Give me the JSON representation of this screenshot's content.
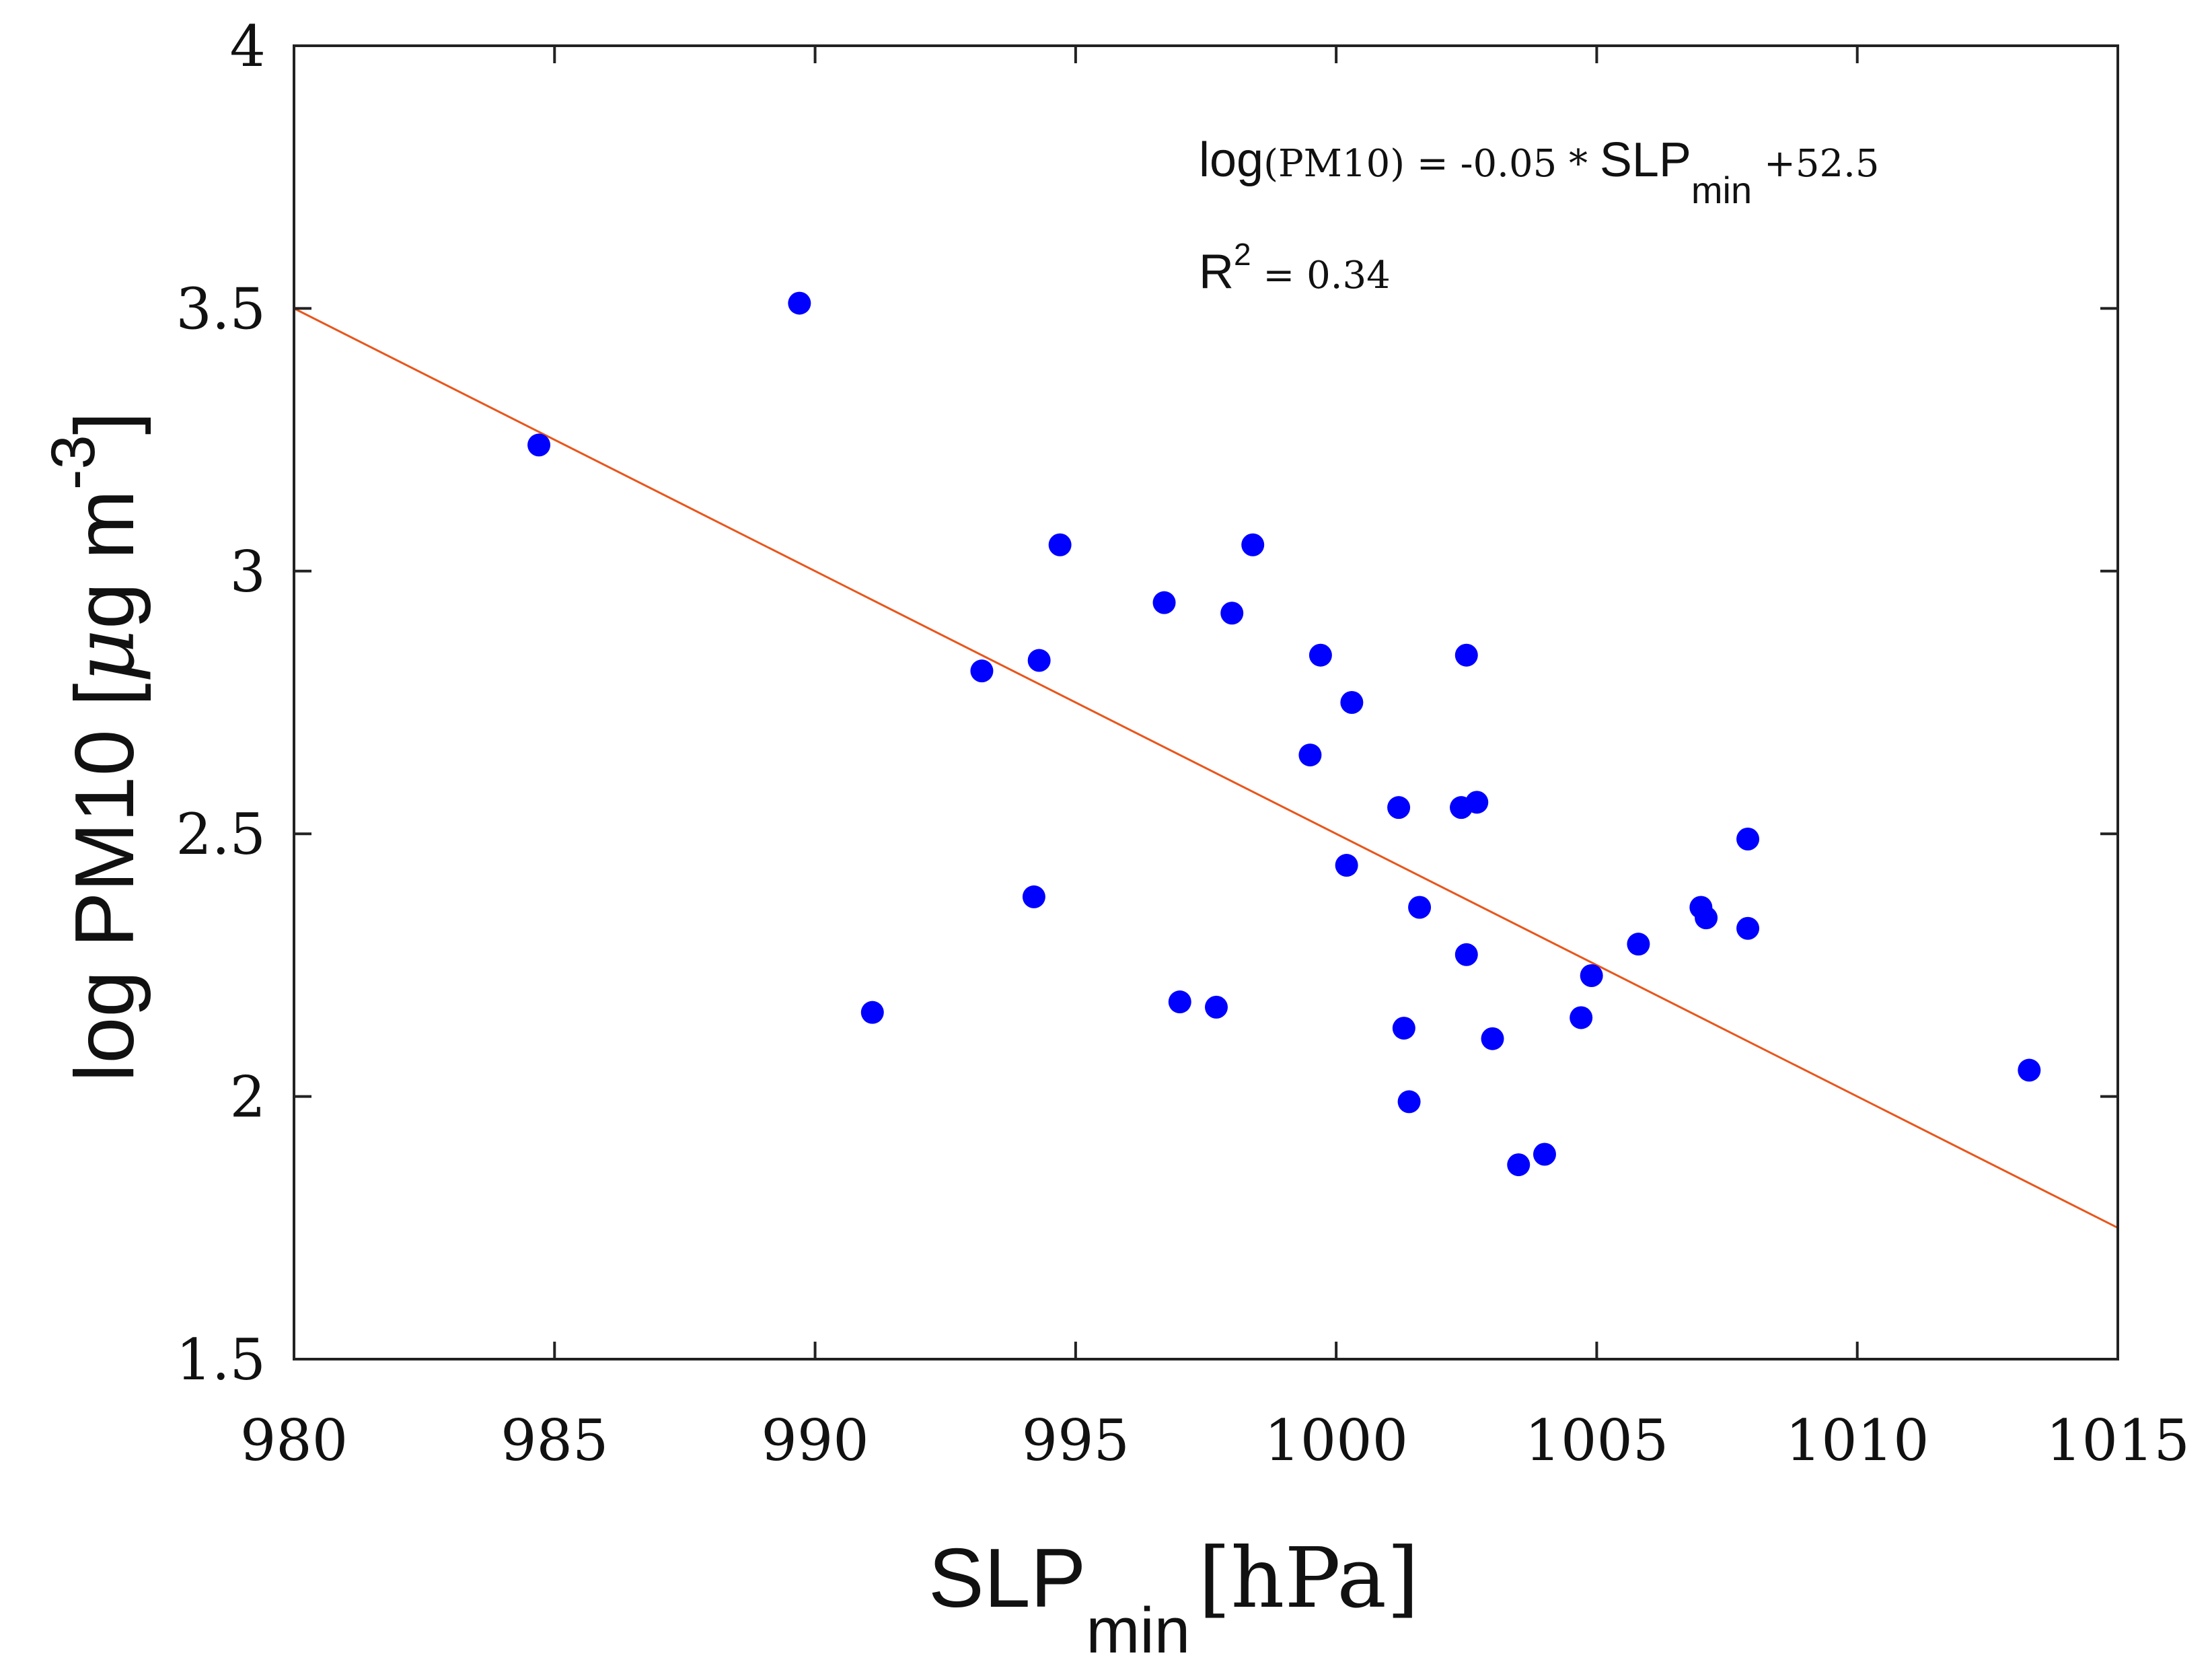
{
  "chart_data": {
    "type": "scatter",
    "title": "",
    "xlabel": {
      "main": "SLP",
      "sub": "min",
      "unit": "[hPa]"
    },
    "ylabel": {
      "main": "log PM10 [",
      "mu": "μ",
      "rest": "g m",
      "sup": "-3",
      "close": "]"
    },
    "xlim": [
      980,
      1015
    ],
    "ylim": [
      1.5,
      4
    ],
    "xticks": [
      980,
      985,
      990,
      995,
      1000,
      1005,
      1010,
      1015
    ],
    "yticks": [
      1.5,
      2,
      2.5,
      3,
      3.5,
      4
    ],
    "xtick_labels": [
      "980",
      "985",
      "990",
      "995",
      "1000",
      "1005",
      "1010",
      "1015"
    ],
    "ytick_labels": [
      "1.5",
      "2",
      "2.5",
      "3",
      "3.5",
      "4"
    ],
    "grid": false,
    "point_color": "#0000ff",
    "line_color": "#e8561c",
    "fit": {
      "slope": -0.05,
      "intercept": 52.5,
      "x_range": [
        980,
        1015
      ]
    },
    "points": [
      {
        "x": 984.7,
        "y": 3.24
      },
      {
        "x": 989.7,
        "y": 3.51
      },
      {
        "x": 991.1,
        "y": 2.16
      },
      {
        "x": 993.2,
        "y": 2.81
      },
      {
        "x": 994.2,
        "y": 2.38
      },
      {
        "x": 994.3,
        "y": 2.83
      },
      {
        "x": 994.7,
        "y": 3.05
      },
      {
        "x": 996.7,
        "y": 2.94
      },
      {
        "x": 997.0,
        "y": 2.18
      },
      {
        "x": 997.7,
        "y": 2.17
      },
      {
        "x": 998.0,
        "y": 2.92
      },
      {
        "x": 998.4,
        "y": 3.05
      },
      {
        "x": 999.5,
        "y": 2.65
      },
      {
        "x": 999.7,
        "y": 2.84
      },
      {
        "x": 1000.2,
        "y": 2.44
      },
      {
        "x": 1000.3,
        "y": 2.75
      },
      {
        "x": 1001.2,
        "y": 2.55
      },
      {
        "x": 1001.3,
        "y": 2.13
      },
      {
        "x": 1001.4,
        "y": 1.99
      },
      {
        "x": 1001.6,
        "y": 2.36
      },
      {
        "x": 1002.4,
        "y": 2.55
      },
      {
        "x": 1002.5,
        "y": 2.84
      },
      {
        "x": 1002.5,
        "y": 2.27
      },
      {
        "x": 1002.7,
        "y": 2.56
      },
      {
        "x": 1003.0,
        "y": 2.11
      },
      {
        "x": 1003.5,
        "y": 1.87
      },
      {
        "x": 1004.0,
        "y": 1.89
      },
      {
        "x": 1004.7,
        "y": 2.15
      },
      {
        "x": 1004.9,
        "y": 2.23
      },
      {
        "x": 1005.8,
        "y": 2.29
      },
      {
        "x": 1007.0,
        "y": 2.36
      },
      {
        "x": 1007.1,
        "y": 2.34
      },
      {
        "x": 1007.9,
        "y": 2.49
      },
      {
        "x": 1007.9,
        "y": 2.32
      },
      {
        "x": 1013.3,
        "y": 2.05
      }
    ],
    "annotations": {
      "equation": {
        "lhs": "log",
        "lhs_paren": "(PM10)",
        "mid": " = -0.05 * ",
        "var": "SLP",
        "var_sub": "min",
        "rhs": " +52.5"
      },
      "r2": {
        "label": "R",
        "sup": "2",
        "value": " = 0.34"
      }
    }
  }
}
